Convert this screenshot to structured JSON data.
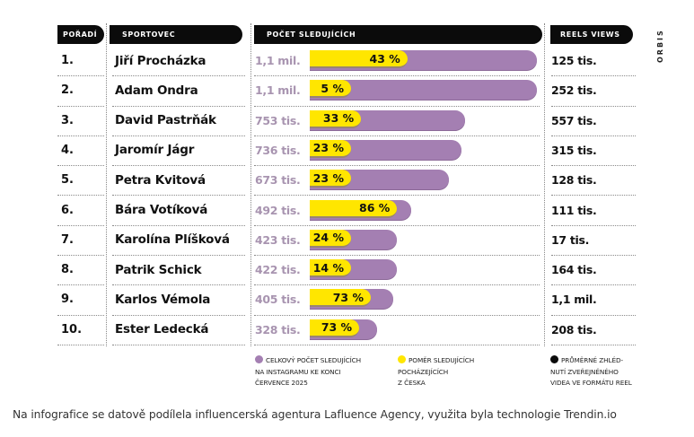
{
  "brand": "ORBIS",
  "headers": {
    "rank": "POŘADÍ",
    "athlete": "SPORTOVEC",
    "followers": "POČET SLEDUJÍCÍCH",
    "reels": "REELS VIEWS"
  },
  "colors": {
    "followers_bar": "#a47fb2",
    "czech_share_bar": "#ffe600",
    "reels_dot": "#0b0b0b",
    "header_bg": "#0b0b0b"
  },
  "rows": [
    {
      "rank": "1.",
      "name": "Jiří Procházka",
      "followers_label": "1,1 mil.",
      "share_label": "43 %",
      "reels": "125 tis."
    },
    {
      "rank": "2.",
      "name": "Adam Ondra",
      "followers_label": "1,1 mil.",
      "share_label": "5 %",
      "reels": "252 tis."
    },
    {
      "rank": "3.",
      "name": "David Pastrňák",
      "followers_label": "753 tis.",
      "share_label": "33 %",
      "reels": "557 tis."
    },
    {
      "rank": "4.",
      "name": "Jaromír Jágr",
      "followers_label": "736 tis.",
      "share_label": "23 %",
      "reels": "315 tis."
    },
    {
      "rank": "5.",
      "name": "Petra Kvitová",
      "followers_label": "673 tis.",
      "share_label": "23 %",
      "reels": "128 tis."
    },
    {
      "rank": "6.",
      "name": "Bára Votíková",
      "followers_label": "492 tis.",
      "share_label": "86 %",
      "reels": "111 tis."
    },
    {
      "rank": "7.",
      "name": "Karolína Plíšková",
      "followers_label": "423 tis.",
      "share_label": "24 %",
      "reels": "17 tis."
    },
    {
      "rank": "8.",
      "name": "Patrik Schick",
      "followers_label": "422 tis.",
      "share_label": "14 %",
      "reels": "164 tis."
    },
    {
      "rank": "9.",
      "name": "Karlos Vémola",
      "followers_label": "405 tis.",
      "share_label": "73 %",
      "reels": "1,1 mil."
    },
    {
      "rank": "10.",
      "name": "Ester Ledecká",
      "followers_label": "328 tis.",
      "share_label": "73 %",
      "reels": "208 tis."
    }
  ],
  "legend": {
    "followers": [
      "Celkový počet sledujících",
      "na Instagramu ke konci",
      "července 2025"
    ],
    "czech_share": [
      "Poměr sledujících",
      "pocházejících",
      "z Česka"
    ],
    "reels": [
      "Průměrné zhléd-",
      "nutí zveřejněného",
      "videa ve formátu reel"
    ]
  },
  "caption": "Na infografice se datově podílela influencerská agentura Lafluence Agency, využita byla technologie Trendin.io",
  "chart_data": {
    "type": "bar",
    "orientation": "horizontal",
    "title": "",
    "categories": [
      "Jiří Procházka",
      "Adam Ondra",
      "David Pastrňák",
      "Jaromír Jágr",
      "Petra Kvitová",
      "Bára Votíková",
      "Karolína Plíšková",
      "Patrik Schick",
      "Karlos Vémola",
      "Ester Ledecká"
    ],
    "series": [
      {
        "name": "Celkový počet sledujících na Instagramu ke konci července 2025",
        "unit": "followers",
        "values": [
          1100000,
          1100000,
          753000,
          736000,
          673000,
          492000,
          423000,
          422000,
          405000,
          328000
        ]
      },
      {
        "name": "Poměr sledujících pocházejících z Česka",
        "unit": "percent",
        "values": [
          43,
          5,
          33,
          23,
          23,
          86,
          24,
          14,
          73,
          73
        ]
      },
      {
        "name": "Průměrné zhlédnutí zveřejněného videa ve formátu reel",
        "unit": "views",
        "values": [
          125000,
          252000,
          557000,
          315000,
          128000,
          111000,
          17000,
          164000,
          1100000,
          208000
        ]
      }
    ],
    "xlim": [
      0,
      1100000
    ],
    "grid": false,
    "legend_position": "bottom"
  }
}
